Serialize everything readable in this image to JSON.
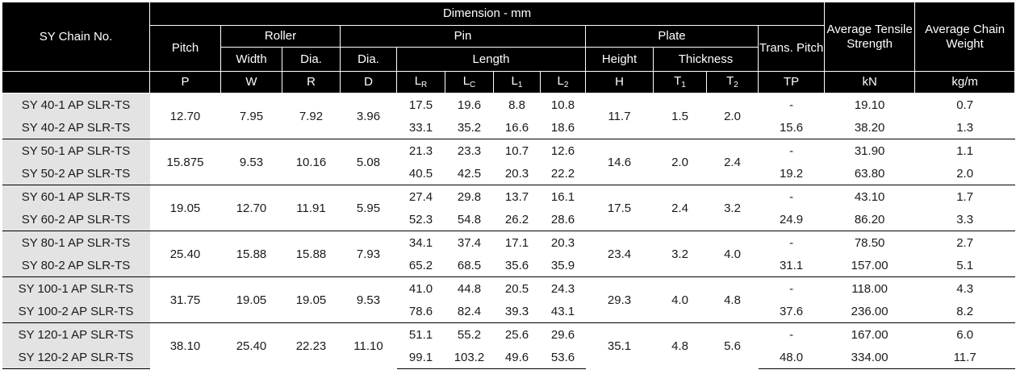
{
  "header": {
    "chain_no": "SY Chain No.",
    "dimension": "Dimension - mm",
    "pitch": "Pitch",
    "roller": "Roller",
    "pin": "Pin",
    "plate": "Plate",
    "trans_pitch": "Trans. Pitch",
    "tensile": "Average Tensile Strength",
    "weight": "Average Chain Weight",
    "roller_width": "Width",
    "roller_dia": "Dia.",
    "pin_dia": "Dia.",
    "pin_length": "Length",
    "plate_height": "Height",
    "plate_thickness": "Thickness",
    "sym": {
      "p": "P",
      "w": "W",
      "r": "R",
      "d": "D",
      "lr": "L",
      "lr_sub": "R",
      "lc": "L",
      "lc_sub": "C",
      "l1": "L",
      "l1_sub": "1",
      "l2": "L",
      "l2_sub": "2",
      "h": "H",
      "t1": "T",
      "t1_sub": "1",
      "t2": "T",
      "t2_sub": "2",
      "tp": "TP",
      "kn": "kN",
      "kgm": "kg/m"
    }
  },
  "groups": [
    {
      "names": [
        "SY 40-1 AP SLR-TS",
        "SY 40-2 AP SLR-TS"
      ],
      "p": "12.70",
      "w": "7.95",
      "r": "7.92",
      "d": "3.96",
      "lr": [
        "17.5",
        "33.1"
      ],
      "lc": [
        "19.6",
        "35.2"
      ],
      "l1": [
        "8.8",
        "16.6"
      ],
      "l2": [
        "10.8",
        "18.6"
      ],
      "h": "11.7",
      "t1": "1.5",
      "t2": "2.0",
      "tp": [
        "-",
        "15.6"
      ],
      "kn": [
        "19.10",
        "38.20"
      ],
      "kgm": [
        "0.7",
        "1.3"
      ]
    },
    {
      "names": [
        "SY 50-1 AP SLR-TS",
        "SY 50-2 AP SLR-TS"
      ],
      "p": "15.875",
      "w": "9.53",
      "r": "10.16",
      "d": "5.08",
      "lr": [
        "21.3",
        "40.5"
      ],
      "lc": [
        "23.3",
        "42.5"
      ],
      "l1": [
        "10.7",
        "20.3"
      ],
      "l2": [
        "12.6",
        "22.2"
      ],
      "h": "14.6",
      "t1": "2.0",
      "t2": "2.4",
      "tp": [
        "-",
        "19.2"
      ],
      "kn": [
        "31.90",
        "63.80"
      ],
      "kgm": [
        "1.1",
        "2.0"
      ]
    },
    {
      "names": [
        "SY 60-1 AP SLR-TS",
        "SY 60-2 AP SLR-TS"
      ],
      "p": "19.05",
      "w": "12.70",
      "r": "11.91",
      "d": "5.95",
      "lr": [
        "27.4",
        "52.3"
      ],
      "lc": [
        "29.8",
        "54.8"
      ],
      "l1": [
        "13.7",
        "26.2"
      ],
      "l2": [
        "16.1",
        "28.6"
      ],
      "h": "17.5",
      "t1": "2.4",
      "t2": "3.2",
      "tp": [
        "-",
        "24.9"
      ],
      "kn": [
        "43.10",
        "86.20"
      ],
      "kgm": [
        "1.7",
        "3.3"
      ]
    },
    {
      "names": [
        "SY 80-1 AP SLR-TS",
        "SY 80-2 AP SLR-TS"
      ],
      "p": "25.40",
      "w": "15.88",
      "r": "15.88",
      "d": "7.93",
      "lr": [
        "34.1",
        "65.2"
      ],
      "lc": [
        "37.4",
        "68.5"
      ],
      "l1": [
        "17.1",
        "35.6"
      ],
      "l2": [
        "20.3",
        "35.9"
      ],
      "h": "23.4",
      "t1": "3.2",
      "t2": "4.0",
      "tp": [
        "-",
        "31.1"
      ],
      "kn": [
        "78.50",
        "157.00"
      ],
      "kgm": [
        "2.7",
        "5.1"
      ]
    },
    {
      "names": [
        "SY 100-1 AP SLR-TS",
        "SY 100-2 AP SLR-TS"
      ],
      "p": "31.75",
      "w": "19.05",
      "r": "19.05",
      "d": "9.53",
      "lr": [
        "41.0",
        "78.6"
      ],
      "lc": [
        "44.8",
        "82.4"
      ],
      "l1": [
        "20.5",
        "39.3"
      ],
      "l2": [
        "24.3",
        "43.1"
      ],
      "h": "29.3",
      "t1": "4.0",
      "t2": "4.8",
      "tp": [
        "-",
        "37.6"
      ],
      "kn": [
        "118.00",
        "236.00"
      ],
      "kgm": [
        "4.3",
        "8.2"
      ]
    },
    {
      "names": [
        "SY 120-1 AP SLR-TS",
        "SY 120-2 AP SLR-TS"
      ],
      "p": "38.10",
      "w": "25.40",
      "r": "22.23",
      "d": "11.10",
      "lr": [
        "51.1",
        "99.1"
      ],
      "lc": [
        "55.2",
        "103.2"
      ],
      "l1": [
        "25.6",
        "49.6"
      ],
      "l2": [
        "29.6",
        "53.6"
      ],
      "h": "35.1",
      "t1": "4.8",
      "t2": "5.6",
      "tp": [
        "-",
        "48.0"
      ],
      "kn": [
        "167.00",
        "334.00"
      ],
      "kgm": [
        "6.0",
        "11.7"
      ]
    }
  ]
}
